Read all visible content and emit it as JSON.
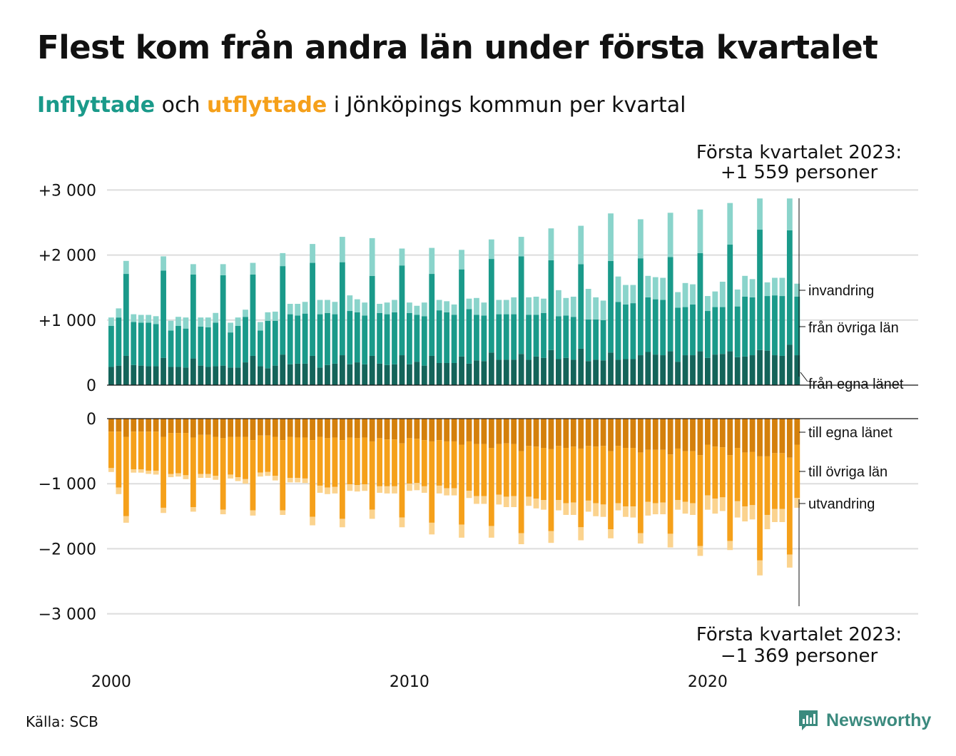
{
  "title": "Flest kom från andra län under första kvartalet",
  "subtitle": {
    "part1": "Inflyttade",
    "part2": " och ",
    "part3": "utflyttade",
    "part4": " i Jönköpings kommun per kvartal"
  },
  "annotation_top": {
    "line1": "Första kvartalet 2023:",
    "line2": "+1 559 personer"
  },
  "annotation_bottom": {
    "line1": "Första kvartalet 2023:",
    "line2": "−1 369 personer"
  },
  "source": "Källa: SCB",
  "logo": "Newsworthy",
  "colors": {
    "in_own": "#14645a",
    "in_other": "#1a9a8a",
    "in_immig": "#8ad4cb",
    "out_own": "#d4800c",
    "out_other": "#f5a01a",
    "out_emig": "#fbd38e",
    "grid": "#dddddd",
    "logo": "#3b8a7e"
  },
  "chart_data": {
    "type": "bar",
    "stacked": true,
    "x": {
      "quarters": [
        "2000 Q1",
        "2000 Q2",
        "2000 Q3",
        "2000 Q4",
        "2001 Q1",
        "2001 Q2",
        "2001 Q3",
        "2001 Q4",
        "2002 Q1",
        "2002 Q2",
        "2002 Q3",
        "2002 Q4",
        "2003 Q1",
        "2003 Q2",
        "2003 Q3",
        "2003 Q4",
        "2004 Q1",
        "2004 Q2",
        "2004 Q3",
        "2004 Q4",
        "2005 Q1",
        "2005 Q2",
        "2005 Q3",
        "2005 Q4",
        "2006 Q1",
        "2006 Q2",
        "2006 Q3",
        "2006 Q4",
        "2007 Q1",
        "2007 Q2",
        "2007 Q3",
        "2007 Q4",
        "2008 Q1",
        "2008 Q2",
        "2008 Q3",
        "2008 Q4",
        "2009 Q1",
        "2009 Q2",
        "2009 Q3",
        "2009 Q4",
        "2010 Q1",
        "2010 Q2",
        "2010 Q3",
        "2010 Q4",
        "2011 Q1",
        "2011 Q2",
        "2011 Q3",
        "2011 Q4",
        "2012 Q1",
        "2012 Q2",
        "2012 Q3",
        "2012 Q4",
        "2013 Q1",
        "2013 Q2",
        "2013 Q3",
        "2013 Q4",
        "2014 Q1",
        "2014 Q2",
        "2014 Q3",
        "2014 Q4",
        "2015 Q1",
        "2015 Q2",
        "2015 Q3",
        "2015 Q4",
        "2016 Q1",
        "2016 Q2",
        "2016 Q3",
        "2016 Q4",
        "2017 Q1",
        "2017 Q2",
        "2017 Q3",
        "2017 Q4",
        "2018 Q1",
        "2018 Q2",
        "2018 Q3",
        "2018 Q4",
        "2019 Q1",
        "2019 Q2",
        "2019 Q3",
        "2019 Q4",
        "2020 Q1",
        "2020 Q2",
        "2020 Q3",
        "2020 Q4",
        "2021 Q1",
        "2021 Q2",
        "2021 Q3",
        "2021 Q4",
        "2022 Q1",
        "2022 Q2",
        "2022 Q3",
        "2022 Q4",
        "2023 Q1"
      ],
      "tick_labels": [
        "2000",
        "2010",
        "2020"
      ],
      "tick_years": [
        2000,
        2010,
        2020
      ]
    },
    "ylim": [
      -3000,
      3000
    ],
    "y_ticks": [
      {
        "value": 3000,
        "label": "+3 000"
      },
      {
        "value": 2000,
        "label": "+2 000"
      },
      {
        "value": 1000,
        "label": "+1 000"
      },
      {
        "value": 0,
        "label": "0"
      },
      {
        "value": -1000,
        "label": "−1 000"
      },
      {
        "value": -2000,
        "label": "−2 000"
      },
      {
        "value": -3000,
        "label": "−3 000"
      }
    ],
    "grid": true,
    "in_series": [
      {
        "name": "från egna länet",
        "values": [
          280,
          300,
          450,
          310,
          300,
          290,
          290,
          420,
          280,
          280,
          270,
          410,
          300,
          280,
          290,
          300,
          270,
          270,
          350,
          450,
          290,
          260,
          300,
          470,
          320,
          330,
          330,
          450,
          270,
          310,
          330,
          460,
          320,
          350,
          320,
          450,
          330,
          310,
          320,
          460,
          320,
          360,
          300,
          450,
          340,
          340,
          340,
          440,
          330,
          380,
          370,
          500,
          390,
          390,
          390,
          480,
          390,
          440,
          420,
          540,
          400,
          420,
          390,
          560,
          370,
          390,
          380,
          500,
          390,
          400,
          400,
          460,
          510,
          470,
          460,
          520,
          360,
          460,
          460,
          520,
          420,
          470,
          480,
          520,
          430,
          440,
          460,
          540,
          530,
          460,
          450,
          620,
          460
        ]
      },
      {
        "name": "från övriga län",
        "values": [
          630,
          740,
          1260,
          660,
          660,
          670,
          650,
          1340,
          560,
          630,
          600,
          1290,
          600,
          610,
          670,
          1390,
          540,
          640,
          700,
          1250,
          550,
          730,
          690,
          1360,
          770,
          740,
          770,
          1430,
          820,
          800,
          760,
          1430,
          820,
          770,
          750,
          1230,
          780,
          780,
          800,
          1380,
          790,
          720,
          760,
          1260,
          810,
          780,
          740,
          1340,
          840,
          700,
          700,
          1440,
          700,
          700,
          700,
          1500,
          690,
          640,
          690,
          1380,
          660,
          650,
          660,
          1300,
          640,
          620,
          620,
          1410,
          890,
          840,
          860,
          1490,
          840,
          850,
          850,
          1450,
          830,
          740,
          780,
          1510,
          720,
          730,
          720,
          1640,
          780,
          920,
          890,
          1850,
          840,
          920,
          920,
          1760,
          900
        ]
      },
      {
        "name": "invandring",
        "values": [
          130,
          140,
          200,
          120,
          120,
          120,
          120,
          220,
          150,
          140,
          170,
          160,
          140,
          150,
          150,
          170,
          150,
          130,
          110,
          180,
          130,
          130,
          140,
          200,
          160,
          180,
          180,
          290,
          220,
          200,
          190,
          390,
          240,
          200,
          200,
          580,
          140,
          180,
          190,
          260,
          160,
          140,
          210,
          400,
          160,
          170,
          160,
          300,
          160,
          260,
          200,
          300,
          220,
          220,
          260,
          300,
          270,
          280,
          220,
          490,
          400,
          270,
          310,
          590,
          470,
          340,
          300,
          730,
          390,
          300,
          280,
          600,
          330,
          340,
          340,
          680,
          240,
          370,
          310,
          670,
          230,
          240,
          390,
          640,
          260,
          320,
          280,
          480,
          210,
          270,
          280,
          490,
          200
        ]
      }
    ],
    "out_series": [
      {
        "name": "till egna länet",
        "values": [
          200,
          200,
          280,
          200,
          200,
          200,
          200,
          280,
          220,
          220,
          220,
          290,
          250,
          250,
          280,
          300,
          280,
          280,
          280,
          330,
          260,
          260,
          280,
          330,
          280,
          290,
          290,
          330,
          280,
          300,
          290,
          330,
          290,
          300,
          290,
          350,
          300,
          320,
          320,
          380,
          300,
          310,
          330,
          350,
          330,
          350,
          350,
          400,
          350,
          390,
          390,
          450,
          390,
          380,
          390,
          500,
          420,
          430,
          450,
          470,
          420,
          450,
          430,
          460,
          420,
          430,
          420,
          500,
          420,
          450,
          450,
          520,
          480,
          480,
          480,
          550,
          460,
          500,
          500,
          560,
          400,
          430,
          440,
          560,
          450,
          520,
          510,
          580,
          580,
          530,
          530,
          600,
          400
        ]
      },
      {
        "name": "till övriga län",
        "values": [
          560,
          860,
          1220,
          580,
          580,
          600,
          600,
          1090,
          630,
          620,
          650,
          1070,
          600,
          600,
          600,
          1100,
          580,
          620,
          650,
          1080,
          570,
          560,
          600,
          1080,
          630,
          620,
          630,
          1180,
          750,
          760,
          760,
          1210,
          720,
          720,
          720,
          1050,
          740,
          720,
          720,
          1140,
          700,
          680,
          710,
          1250,
          700,
          720,
          720,
          1230,
          760,
          800,
          800,
          1200,
          780,
          820,
          800,
          1260,
          780,
          800,
          800,
          1260,
          830,
          850,
          860,
          1210,
          840,
          870,
          900,
          1200,
          880,
          900,
          900,
          1240,
          800,
          820,
          810,
          1220,
          790,
          780,
          800,
          1400,
          780,
          800,
          770,
          1320,
          820,
          830,
          820,
          1600,
          900,
          860,
          860,
          1490,
          820
        ]
      },
      {
        "name": "utvandring",
        "values": [
          60,
          100,
          100,
          50,
          50,
          50,
          60,
          80,
          50,
          50,
          60,
          70,
          60,
          60,
          60,
          70,
          60,
          60,
          70,
          80,
          60,
          60,
          70,
          70,
          70,
          70,
          70,
          130,
          110,
          100,
          100,
          130,
          100,
          100,
          100,
          140,
          100,
          110,
          110,
          150,
          110,
          110,
          100,
          180,
          120,
          110,
          110,
          200,
          110,
          120,
          120,
          180,
          150,
          160,
          170,
          170,
          140,
          150,
          150,
          180,
          160,
          180,
          190,
          200,
          170,
          200,
          190,
          140,
          110,
          160,
          170,
          160,
          210,
          170,
          180,
          210,
          150,
          180,
          180,
          150,
          220,
          230,
          210,
          140,
          250,
          230,
          220,
          230,
          220,
          200,
          200,
          200,
          150
        ]
      }
    ],
    "labels_in": [
      "invandring",
      "från övriga län",
      "från egna länet"
    ],
    "labels_out": [
      "till egna länet",
      "till övriga län",
      "utvandring"
    ]
  }
}
